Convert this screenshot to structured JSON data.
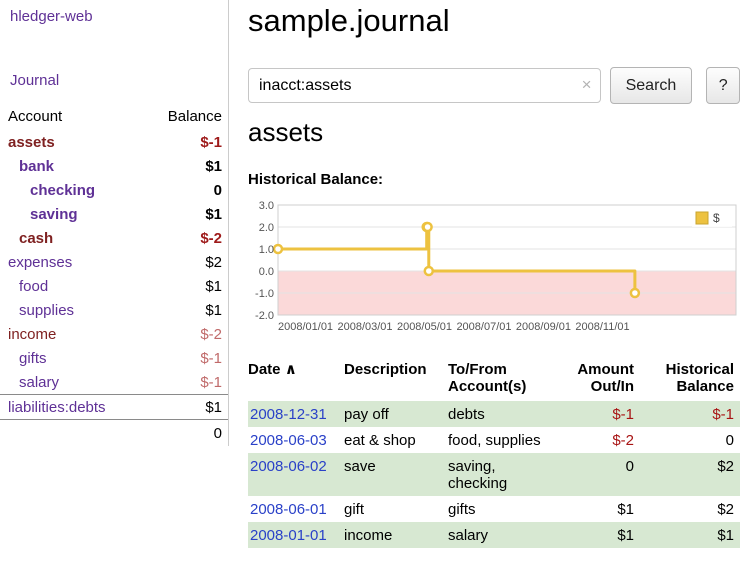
{
  "app_title": "hledger-web",
  "sidebar": {
    "journal_link": "Journal",
    "accounts": {
      "col_account": "Account",
      "col_balance": "Balance",
      "rows": [
        {
          "name": "assets",
          "balance": "$-1",
          "level": 1,
          "bold": true,
          "name_color": "maroon",
          "balance_tone": "neg"
        },
        {
          "name": "bank",
          "balance": "$1",
          "level": 2,
          "bold": true,
          "name_color": "purple",
          "balance_tone": "pos"
        },
        {
          "name": "checking",
          "balance": "0",
          "level": 3,
          "bold": true,
          "name_color": "purple",
          "balance_tone": "pos"
        },
        {
          "name": "saving",
          "balance": "$1",
          "level": 3,
          "bold": true,
          "name_color": "purple",
          "balance_tone": "pos"
        },
        {
          "name": "cash",
          "balance": "$-2",
          "level": 2,
          "bold": true,
          "name_color": "maroon",
          "balance_tone": "neg"
        },
        {
          "name": "expenses",
          "balance": "$2",
          "level": 1,
          "bold": false,
          "name_color": "purple",
          "balance_tone": "pos"
        },
        {
          "name": "food",
          "balance": "$1",
          "level": 2,
          "bold": false,
          "name_color": "purple",
          "balance_tone": "pos"
        },
        {
          "name": "supplies",
          "balance": "$1",
          "level": 2,
          "bold": false,
          "name_color": "purple",
          "balance_tone": "pos"
        },
        {
          "name": "income",
          "balance": "$-2",
          "level": 1,
          "bold": false,
          "name_color": "maroon",
          "balance_tone": "neg_soft"
        },
        {
          "name": "gifts",
          "balance": "$-1",
          "level": 2,
          "bold": false,
          "name_color": "purple",
          "balance_tone": "neg_soft"
        },
        {
          "name": "salary",
          "balance": "$-1",
          "level": 2,
          "bold": false,
          "name_color": "purple",
          "balance_tone": "neg_soft"
        },
        {
          "name": "liabilities:debts",
          "balance": "$1",
          "level": 1,
          "bold": false,
          "name_color": "purple",
          "balance_tone": "pos",
          "rule_above": true
        }
      ],
      "total": "0"
    }
  },
  "main": {
    "title": "sample.journal",
    "search": {
      "value": "inacct:assets",
      "clear_icon": "×",
      "search_button": "Search",
      "help_button": "?"
    },
    "account_heading": "assets",
    "chart_title": "Historical Balance:"
  },
  "register": {
    "headers": {
      "date": "Date",
      "sort_icon": "∧",
      "description": "Description",
      "accounts": "To/From Account(s)",
      "amount": "Amount Out/In",
      "balance": "Historical Balance"
    },
    "rows": [
      {
        "date": "2008-12-31",
        "description": "pay off",
        "accounts": "debts",
        "amount": "$-1",
        "balance": "$-1",
        "amount_negative": true,
        "balance_negative": true,
        "shaded": true
      },
      {
        "date": "2008-06-03",
        "description": "eat & shop",
        "accounts": "food, supplies",
        "amount": "$-2",
        "balance": "0",
        "amount_negative": true,
        "balance_negative": false,
        "shaded": false
      },
      {
        "date": "2008-06-02",
        "description": "save",
        "accounts": "saving, checking",
        "amount": "0",
        "balance": "$2",
        "amount_negative": false,
        "balance_negative": false,
        "shaded": true
      },
      {
        "date": "2008-06-01",
        "description": "gift",
        "accounts": "gifts",
        "amount": "$1",
        "balance": "$2",
        "amount_negative": false,
        "balance_negative": false,
        "shaded": false
      },
      {
        "date": "2008-01-01",
        "description": "income",
        "accounts": "salary",
        "amount": "$1",
        "balance": "$1",
        "amount_negative": false,
        "balance_negative": false,
        "shaded": true
      }
    ]
  },
  "chart_data": {
    "type": "line",
    "step": true,
    "title": "Historical Balance",
    "legend_label": "$",
    "legend_position": "top-right",
    "line_color": "#edc240",
    "negative_region_color": "#fbd9d9",
    "grid": true,
    "ylim": [
      -2,
      3
    ],
    "y_ticks": [
      "3.0",
      "2.0",
      "1.0",
      "0.0",
      "-1.0",
      "-2.0"
    ],
    "y_tick_values": [
      3,
      2,
      1,
      0,
      -1,
      -2
    ],
    "xlim_months": [
      0,
      15.4
    ],
    "x_ticks": [
      {
        "m": 0,
        "label": "2008/01/01"
      },
      {
        "m": 2,
        "label": "2008/03/01"
      },
      {
        "m": 4,
        "label": "2008/05/01"
      },
      {
        "m": 6,
        "label": "2008/07/01"
      },
      {
        "m": 8,
        "label": "2008/09/01"
      },
      {
        "m": 10,
        "label": "2008/11/01"
      }
    ],
    "points": [
      {
        "date": "2008/01/01",
        "m": 0,
        "value": 1
      },
      {
        "date": "2008/06/01",
        "m": 5.0,
        "value": 2
      },
      {
        "date": "2008/06/02",
        "m": 5.03,
        "value": 2
      },
      {
        "date": "2008/06/03",
        "m": 5.07,
        "value": 0
      },
      {
        "date": "2008/12/31",
        "m": 12.0,
        "value": -1
      }
    ]
  },
  "colors": {
    "link_purple": "#5f3196",
    "account_maroon": "#7f2121",
    "negative_strong": "#9e1a1a",
    "negative_soft": "#c06a6a",
    "table_negative": "#a81414",
    "date_link_blue": "#2a41c8",
    "row_green": "#d7e8d2",
    "chart_line_yellow": "#edc240",
    "chart_negative_pink": "#fbd9d9"
  }
}
